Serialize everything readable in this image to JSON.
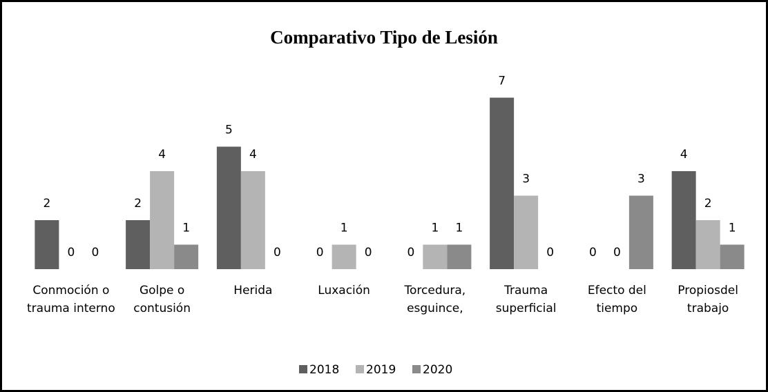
{
  "chart_data": {
    "type": "bar",
    "title": "Comparativo Tipo de Lesión",
    "categories": [
      "Conmoción o trauma interno",
      "Golpe o contusión",
      "Herida",
      "Luxación",
      "Torcedura, esguince,",
      "Trauma superficial",
      "Efecto del tiempo",
      "Propiosdel trabajo"
    ],
    "series": [
      {
        "name": "2018",
        "color": "#5f5f5f",
        "values": [
          2,
          2,
          5,
          0,
          0,
          7,
          0,
          4
        ]
      },
      {
        "name": "2019",
        "color": "#b4b4b4",
        "values": [
          0,
          4,
          4,
          1,
          1,
          3,
          0,
          2
        ]
      },
      {
        "name": "2020",
        "color": "#8a8a8a",
        "values": [
          0,
          1,
          0,
          0,
          1,
          0,
          3,
          1
        ]
      }
    ],
    "ylim": [
      0,
      8
    ],
    "legend": "bottom"
  }
}
